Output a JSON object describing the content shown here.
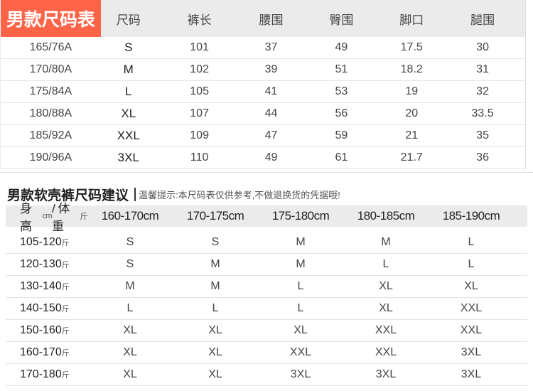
{
  "table1": {
    "title": "男款尺码表",
    "headers": [
      "尺码",
      "裤长",
      "腰围",
      "臀围",
      "脚口",
      "腿围"
    ],
    "rows": [
      [
        "165/76A",
        "S",
        "101",
        "37",
        "49",
        "17.5",
        "30"
      ],
      [
        "170/80A",
        "M",
        "102",
        "39",
        "51",
        "18.2",
        "31"
      ],
      [
        "175/84A",
        "L",
        "105",
        "41",
        "53",
        "19",
        "32"
      ],
      [
        "180/88A",
        "XL",
        "107",
        "44",
        "56",
        "20",
        "33.5"
      ],
      [
        "185/92A",
        "XXL",
        "109",
        "47",
        "59",
        "21",
        "35"
      ],
      [
        "190/96A",
        "3XL",
        "110",
        "49",
        "61",
        "21.7",
        "36"
      ]
    ]
  },
  "table2": {
    "title": "男款软壳裤尺码建议",
    "tip": "温馨提示:本尺码表仅供参考,不做退换货的凭据哦!",
    "corner": {
      "a": "身高",
      "b": "cm",
      "c": "/ 体重",
      "d": "斤"
    },
    "headers": [
      "160-170cm",
      "170-175cm",
      "175-180cm",
      "180-185cm",
      "185-190cm"
    ],
    "unit": "斤",
    "rows": [
      {
        "label": "105-120",
        "vals": [
          "S",
          "S",
          "M",
          "M",
          "L"
        ]
      },
      {
        "label": "120-130",
        "vals": [
          "S",
          "M",
          "M",
          "L",
          "L"
        ]
      },
      {
        "label": "130-140",
        "vals": [
          "M",
          "M",
          "L",
          "XL",
          "XL"
        ]
      },
      {
        "label": "140-150",
        "vals": [
          "L",
          "L",
          "L",
          "XL",
          "XXL"
        ]
      },
      {
        "label": "150-160",
        "vals": [
          "XL",
          "XL",
          "XL",
          "XXL",
          "XXL"
        ]
      },
      {
        "label": "160-170",
        "vals": [
          "XL",
          "XL",
          "XXL",
          "XXL",
          "3XL"
        ]
      },
      {
        "label": "170-180",
        "vals": [
          "XL",
          "XL",
          "3XL",
          "3XL",
          "3XL"
        ]
      }
    ]
  },
  "colors": {
    "brand": "#fe6447",
    "header_bg": "#ebebeb"
  }
}
